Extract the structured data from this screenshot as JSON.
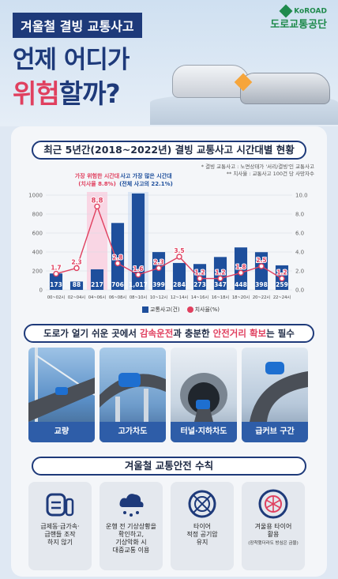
{
  "header": {
    "tag": "겨울철 결빙 교통사고",
    "line1": "언제 어디가",
    "line2_red": "위험",
    "line2_rest": "할까?"
  },
  "logo": {
    "brand": "KoROAD",
    "name": "도로교통공단",
    "color": "#1f8a4c"
  },
  "chart_section": {
    "title": "최근 5년간(2018~2022년) 결빙 교통사고 시간대별 현황",
    "note1": "* 결빙 교통사고 : 노면상태가 '서리/결빙'인 교통사고",
    "note2": "** 치사율 : 교통사고 100건 당 사망자수",
    "annotation_risk_title": "가장 위험한 시간대",
    "annotation_risk_value": "(치사율 8.8%)",
    "annotation_many_title": "사고 가장 많은 시간대",
    "annotation_many_value": "(전체 사고의 22.1%)",
    "legend_bar": "교통사고(건)",
    "legend_line": "치사율(%)"
  },
  "chart_data": {
    "type": "bar+line",
    "categories": [
      "00~02시",
      "02~04시",
      "04~06시",
      "06~08시",
      "08~10시",
      "10~12시",
      "12~14시",
      "14~16시",
      "16~18시",
      "18~20시",
      "20~22시",
      "22~24시"
    ],
    "series": [
      {
        "name": "교통사고(건)",
        "type": "bar",
        "axis": "left",
        "values": [
          173,
          88,
          217,
          706,
          1017,
          399,
          284,
          273,
          347,
          448,
          398,
          259
        ]
      },
      {
        "name": "치사율(%)",
        "type": "line",
        "axis": "right",
        "values": [
          1.7,
          2.3,
          8.8,
          2.8,
          1.6,
          2.3,
          3.5,
          1.2,
          1.2,
          1.8,
          2.5,
          1.2
        ]
      }
    ],
    "bar_labels": [
      "173",
      "88",
      "217",
      "706",
      "1,017",
      "399",
      "284",
      "273",
      "347",
      "448",
      "398",
      "259"
    ],
    "left_axis": {
      "ylim": [
        0,
        1000
      ],
      "ticks": [
        "1000",
        "800",
        "600",
        "400",
        "200",
        "0"
      ]
    },
    "right_axis": {
      "ylim": [
        0,
        10
      ],
      "ticks": [
        "10.0",
        "8.0",
        "6.0",
        "4.0",
        "2.0",
        "0.0"
      ]
    },
    "colors": {
      "bar": "#1e4f9c",
      "line": "#e0405f",
      "highlight_band": "#f9d6e4"
    }
  },
  "places_section": {
    "title_pre": "도로가 얼기 쉬운 곳에서 ",
    "title_hl1": "감속운전",
    "title_mid": "과 충분한 ",
    "title_hl2": "안전거리 확보",
    "title_post": "는 필수",
    "cards": [
      {
        "label": "교량"
      },
      {
        "label": "고가차도"
      },
      {
        "label": "터널·지하차도"
      },
      {
        "label": "급커브 구간"
      }
    ]
  },
  "rules_section": {
    "title": "겨울철 교통안전 수칙",
    "rules": [
      {
        "text": "급제동·급가속·\n급핸들 조작\n하지 않기",
        "sub": ""
      },
      {
        "text": "운행 전 기상상황을\n확인하고,\n기상악화 시\n대중교통 이용",
        "sub": ""
      },
      {
        "text": "타이어\n적정 공기압\n유지",
        "sub": ""
      },
      {
        "text": "겨울용 타이어\n활용",
        "sub": "(장착했더라도 방심은 금물)"
      }
    ]
  }
}
